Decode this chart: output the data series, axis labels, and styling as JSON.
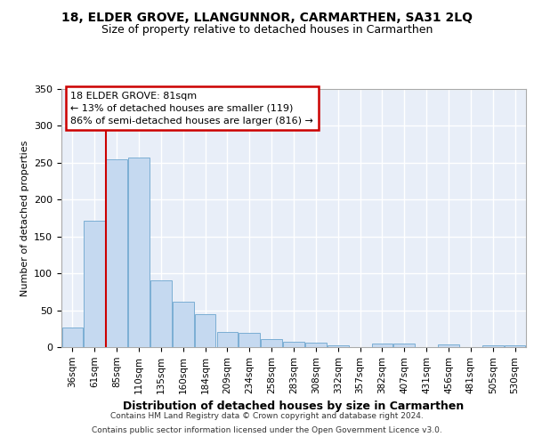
{
  "title": "18, ELDER GROVE, LLANGUNNOR, CARMARTHEN, SA31 2LQ",
  "subtitle": "Size of property relative to detached houses in Carmarthen",
  "xlabel": "Distribution of detached houses by size in Carmarthen",
  "ylabel": "Number of detached properties",
  "bar_color": "#c5d9f0",
  "bar_edge_color": "#7baed4",
  "background_color": "#e8eef8",
  "grid_color": "#ffffff",
  "categories": [
    "36sqm",
    "61sqm",
    "85sqm",
    "110sqm",
    "135sqm",
    "160sqm",
    "184sqm",
    "209sqm",
    "234sqm",
    "258sqm",
    "283sqm",
    "308sqm",
    "332sqm",
    "357sqm",
    "382sqm",
    "407sqm",
    "431sqm",
    "456sqm",
    "481sqm",
    "505sqm",
    "530sqm"
  ],
  "values": [
    27,
    171,
    255,
    257,
    90,
    62,
    45,
    20,
    19,
    11,
    7,
    6,
    3,
    0,
    5,
    5,
    0,
    4,
    0,
    2,
    3
  ],
  "annotation_text_lines": [
    "18 ELDER GROVE: 81sqm",
    "← 13% of detached houses are smaller (119)",
    "86% of semi-detached houses are larger (816) →"
  ],
  "vline_color": "#cc0000",
  "vline_x": 2.0,
  "ylim": [
    0,
    350
  ],
  "title_fontsize": 10,
  "subtitle_fontsize": 9,
  "ylabel_fontsize": 8,
  "xlabel_fontsize": 9,
  "tick_fontsize": 7.5,
  "annot_fontsize": 8,
  "footer_line1": "Contains HM Land Registry data © Crown copyright and database right 2024.",
  "footer_line2": "Contains public sector information licensed under the Open Government Licence v3.0."
}
